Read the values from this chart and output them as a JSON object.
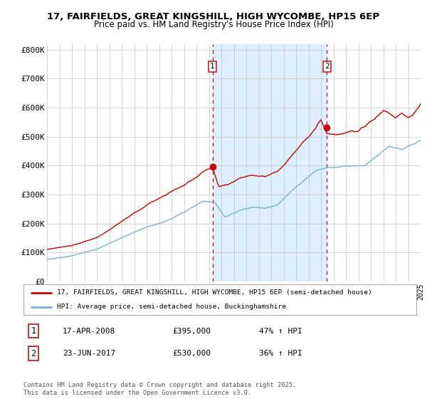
{
  "title1": "17, FAIRFIELDS, GREAT KINGSHILL, HIGH WYCOMBE, HP15 6EP",
  "title2": "Price paid vs. HM Land Registry's House Price Index (HPI)",
  "ylabel_ticks": [
    "£0",
    "£100K",
    "£200K",
    "£300K",
    "£400K",
    "£500K",
    "£600K",
    "£700K",
    "£800K"
  ],
  "ytick_values": [
    0,
    100000,
    200000,
    300000,
    400000,
    500000,
    600000,
    700000,
    800000
  ],
  "ylim": [
    0,
    820000
  ],
  "x_start_year": 1995,
  "x_end_year": 2025,
  "sale1_year": 2008.29,
  "sale1_price": 395000,
  "sale1_label": "1",
  "sale2_year": 2017.48,
  "sale2_price": 530000,
  "sale2_label": "2",
  "legend_line1": "17, FAIRFIELDS, GREAT KINGSHILL, HIGH WYCOMBE, HP15 6EP (semi-detached house)",
  "legend_line2": "HPI: Average price, semi-detached house, Buckinghamshire",
  "annotation1_date": "17-APR-2008",
  "annotation1_price": "£395,000",
  "annotation1_hpi": "47% ↑ HPI",
  "annotation2_date": "23-JUN-2017",
  "annotation2_price": "£530,000",
  "annotation2_hpi": "36% ↑ HPI",
  "footer": "Contains HM Land Registry data © Crown copyright and database right 2025.\nThis data is licensed under the Open Government Licence v3.0.",
  "property_color": "#cc0000",
  "hpi_color": "#7ab0d4",
  "shade_color": "#ddeeff",
  "grid_color": "#cccccc",
  "background_color": "#ffffff"
}
